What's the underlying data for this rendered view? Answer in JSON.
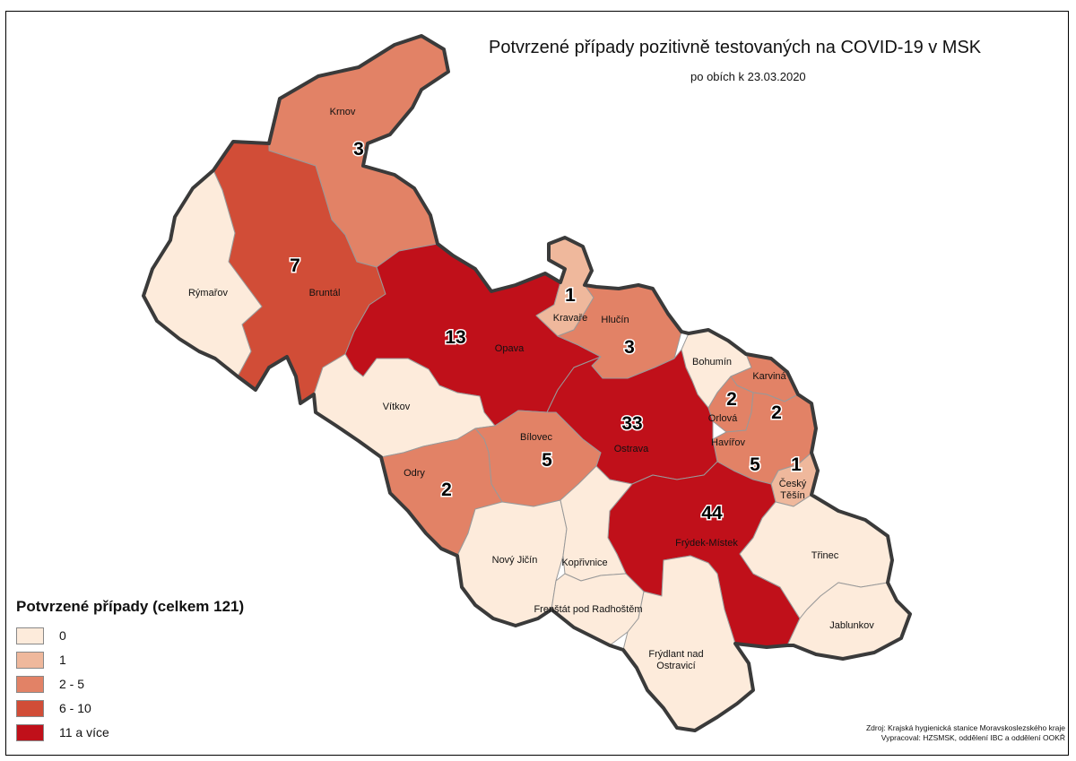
{
  "map": {
    "title": "Potvrzené případy pozitivně testovaných na COVID-19 v MSK",
    "subtitle": "po obích k 23.03.2020",
    "colors": {
      "c0": "#fdebdb",
      "c1": "#efb89c",
      "c2": "#e28266",
      "c3": "#d14d37",
      "c4": "#c0101a",
      "border": "#3a3a3a",
      "internal": "#999999"
    },
    "regions": [
      {
        "name": "Krnov",
        "count": "3",
        "class": "c2"
      },
      {
        "name": "Bruntál",
        "count": "7",
        "class": "c3"
      },
      {
        "name": "Rýmařov",
        "count": "",
        "class": "c0"
      },
      {
        "name": "Opava",
        "count": "13",
        "class": "c4"
      },
      {
        "name": "Kravaře",
        "count": "1",
        "class": "c1"
      },
      {
        "name": "Hlučín",
        "count": "3",
        "class": "c2"
      },
      {
        "name": "Vítkov",
        "count": "",
        "class": "c0"
      },
      {
        "name": "Bohumín",
        "count": "",
        "class": "c0"
      },
      {
        "name": "Karviná",
        "count": "2",
        "class": "c2"
      },
      {
        "name": "Orlová",
        "count": "2",
        "class": "c2"
      },
      {
        "name": "Havířov",
        "count": "5",
        "class": "c2"
      },
      {
        "name": "Ostrava",
        "count": "33",
        "class": "c4"
      },
      {
        "name": "Bílovec",
        "count": "5",
        "class": "c2"
      },
      {
        "name": "Odry",
        "count": "2",
        "class": "c2"
      },
      {
        "name": "Český Těšín",
        "count": "1",
        "class": "c1"
      },
      {
        "name": "Frýdek-Místek",
        "count": "44",
        "class": "c4"
      },
      {
        "name": "Nový Jičín",
        "count": "",
        "class": "c0"
      },
      {
        "name": "Kopřivnice",
        "count": "",
        "class": "c0"
      },
      {
        "name": "Frenštát pod Radhoštěm",
        "count": "",
        "class": "c0"
      },
      {
        "name": "Třinec",
        "count": "",
        "class": "c0"
      },
      {
        "name": "Jablunkov",
        "count": "",
        "class": "c0"
      },
      {
        "name": "Frýdlant nad Ostravicí",
        "count": "",
        "class": "c0"
      }
    ]
  },
  "legend": {
    "title": "Potvrzené případy (celkem 121)",
    "items": [
      {
        "label": "0",
        "color": "#fdebdb"
      },
      {
        "label": "1",
        "color": "#efb89c"
      },
      {
        "label": "2 - 5",
        "color": "#e28266"
      },
      {
        "label": "6 - 10",
        "color": "#d14d37"
      },
      {
        "label": "11 a více",
        "color": "#c0101a"
      }
    ]
  },
  "credits": {
    "line1": "Zdroj: Krajská hygienická stanice Moravskoslezského kraje",
    "line2": "Vypracoval: HZSMSK, oddělení IBC a oddělení OOKŘ"
  }
}
